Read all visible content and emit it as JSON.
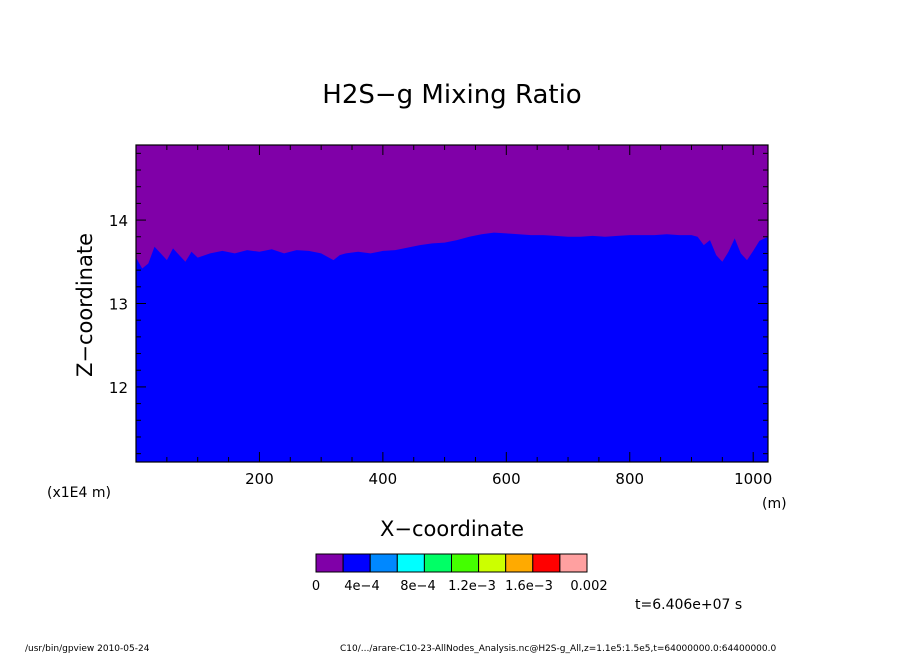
{
  "chart_data": {
    "type": "area",
    "title": "H2S−g Mixing Ratio",
    "xlabel": "X−coordinate",
    "ylabel": "Z−coordinate",
    "x_unit": "(m)",
    "y_scale_note": "(x1E4 m)",
    "xlim": [
      0,
      1024
    ],
    "ylim": [
      11.1,
      14.9
    ],
    "x_ticks": [
      "200",
      "400",
      "600",
      "800",
      "1000"
    ],
    "x_tick_values": [
      200,
      400,
      600,
      800,
      1000
    ],
    "y_ticks": [
      "12",
      "13",
      "14"
    ],
    "y_tick_values": [
      12,
      13,
      14
    ],
    "regions": [
      {
        "name": "4e-4 band",
        "color": "#0000ff",
        "from": "bottom",
        "to": "boundary"
      },
      {
        "name": "0 band",
        "color": "#8000a8",
        "from": "boundary",
        "to": "top"
      }
    ],
    "boundary": {
      "x": [
        0,
        10,
        20,
        30,
        40,
        50,
        60,
        70,
        80,
        90,
        100,
        120,
        140,
        160,
        180,
        200,
        220,
        240,
        260,
        280,
        300,
        310,
        320,
        330,
        340,
        360,
        380,
        400,
        420,
        440,
        460,
        480,
        500,
        520,
        540,
        560,
        580,
        600,
        620,
        640,
        660,
        680,
        700,
        720,
        740,
        760,
        780,
        800,
        820,
        840,
        860,
        880,
        900,
        910,
        920,
        930,
        940,
        950,
        960,
        970,
        980,
        990,
        1000,
        1010,
        1024
      ],
      "z": [
        13.55,
        13.42,
        13.48,
        13.68,
        13.6,
        13.52,
        13.66,
        13.58,
        13.5,
        13.62,
        13.55,
        13.6,
        13.63,
        13.6,
        13.64,
        13.62,
        13.65,
        13.6,
        13.64,
        13.63,
        13.6,
        13.56,
        13.52,
        13.58,
        13.6,
        13.62,
        13.6,
        13.63,
        13.64,
        13.67,
        13.7,
        13.72,
        13.73,
        13.76,
        13.8,
        13.83,
        13.85,
        13.84,
        13.83,
        13.82,
        13.82,
        13.81,
        13.8,
        13.8,
        13.81,
        13.8,
        13.81,
        13.82,
        13.82,
        13.82,
        13.83,
        13.82,
        13.82,
        13.8,
        13.7,
        13.76,
        13.58,
        13.5,
        13.62,
        13.78,
        13.6,
        13.52,
        13.63,
        13.75,
        13.8
      ]
    }
  },
  "colorbar": {
    "colors": [
      "#8000a8",
      "#0000ff",
      "#0088ff",
      "#00ffff",
      "#00ff66",
      "#44ff00",
      "#ccff00",
      "#ffaa00",
      "#ff0000",
      "#ffa0a0"
    ],
    "labels": [
      "0",
      "4e−4",
      "8e−4",
      "1.2e−3",
      "1.6e−3",
      "0.002"
    ]
  },
  "time_label": "t=6.406e+07 s",
  "footer_left": "/usr/bin/gpview   2010-05-24",
  "footer_right": "C10/.../arare-C10-23-AllNodes_Analysis.nc@H2S-g_All,z=1.1e5:1.5e5,t=64000000.0:64400000.0"
}
